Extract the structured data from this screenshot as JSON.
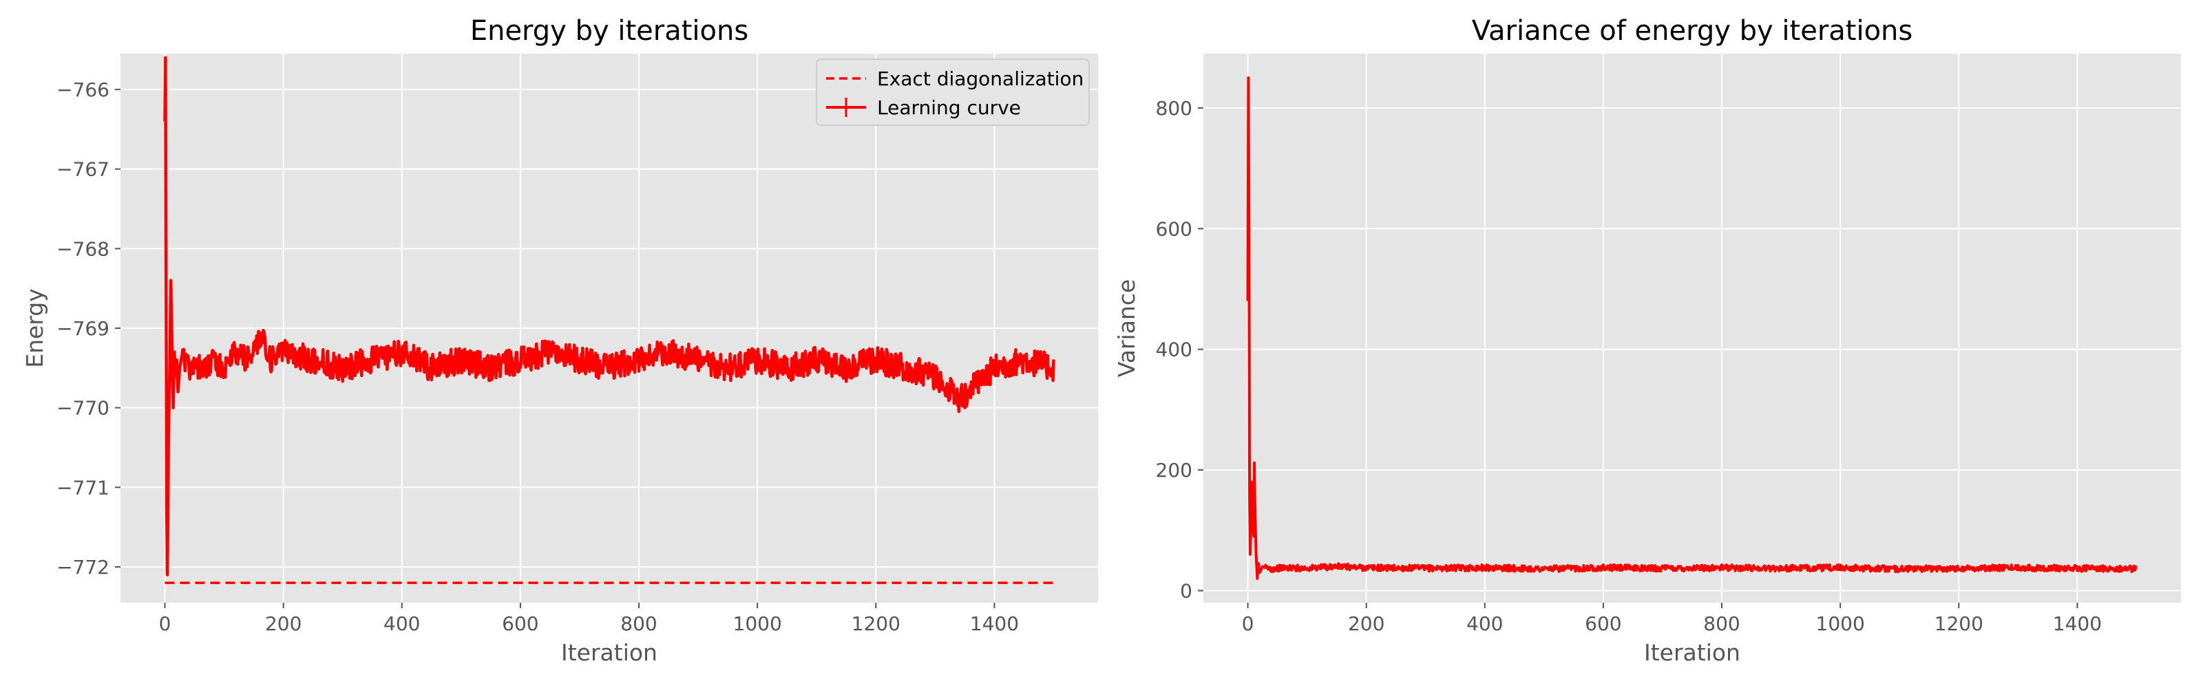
{
  "colors": {
    "panel_bg": "#e5e5e5",
    "grid": "#ffffff",
    "series": "#ff0000",
    "text": "#555555",
    "legend_border": "#cccccc"
  },
  "chart_data": [
    {
      "type": "line",
      "title": "Energy by iterations",
      "xlabel": "Iteration",
      "ylabel": "Energy",
      "xlim": [
        -75,
        1575
      ],
      "ylim": [
        -772.45,
        -765.55
      ],
      "xticks": [
        0,
        200,
        400,
        600,
        800,
        1000,
        1200,
        1400
      ],
      "yticks": [
        -766,
        -767,
        -768,
        -769,
        -770,
        -771,
        -772
      ],
      "grid": true,
      "legend": {
        "position": "upper-right",
        "entries": [
          {
            "label": "Exact diagonalization",
            "style": "dashed"
          },
          {
            "label": "Learning curve",
            "style": "solid-errorbar"
          }
        ]
      },
      "series": [
        {
          "name": "Exact diagonalization",
          "style": "dashed",
          "x": [
            0,
            1500
          ],
          "y": [
            -772.2,
            -772.2
          ]
        },
        {
          "name": "Learning curve",
          "style": "solid",
          "x": [
            0,
            1,
            2,
            3,
            4,
            5,
            6,
            8,
            10,
            12,
            14,
            16,
            18,
            20,
            22,
            25,
            30,
            40,
            50,
            60,
            80,
            100,
            120,
            140,
            160,
            180,
            200,
            250,
            300,
            350,
            400,
            450,
            500,
            550,
            600,
            650,
            700,
            750,
            800,
            850,
            900,
            950,
            1000,
            1050,
            1100,
            1150,
            1200,
            1250,
            1300,
            1340,
            1400,
            1450,
            1500
          ],
          "y": [
            -766.4,
            -765.6,
            -768.5,
            -771.2,
            -772.1,
            -771.5,
            -770.4,
            -769.6,
            -768.4,
            -769.2,
            -770.0,
            -769.3,
            -769.6,
            -769.4,
            -769.8,
            -769.5,
            -769.3,
            -769.5,
            -769.4,
            -769.5,
            -769.4,
            -769.5,
            -769.3,
            -769.4,
            -769.1,
            -769.4,
            -769.3,
            -769.4,
            -769.5,
            -769.4,
            -769.3,
            -769.5,
            -769.4,
            -769.5,
            -769.4,
            -769.3,
            -769.4,
            -769.5,
            -769.4,
            -769.3,
            -769.4,
            -769.5,
            -769.4,
            -769.5,
            -769.4,
            -769.5,
            -769.4,
            -769.5,
            -769.6,
            -769.9,
            -769.5,
            -769.4,
            -769.5
          ]
        }
      ]
    },
    {
      "type": "line",
      "title": "Variance of energy by iterations",
      "xlabel": "Iteration",
      "ylabel": "Variance",
      "xlim": [
        -75,
        1575
      ],
      "ylim": [
        -20,
        890
      ],
      "xticks": [
        0,
        200,
        400,
        600,
        800,
        1000,
        1200,
        1400
      ],
      "yticks": [
        0,
        200,
        400,
        600,
        800
      ],
      "grid": true,
      "series": [
        {
          "name": "",
          "style": "solid",
          "x": [
            0,
            1,
            2,
            3,
            4,
            5,
            6,
            8,
            10,
            11,
            12,
            14,
            16,
            18,
            20,
            25,
            30,
            40,
            60,
            100,
            150,
            200,
            300,
            400,
            500,
            600,
            700,
            800,
            900,
            1000,
            1100,
            1200,
            1300,
            1400,
            1500
          ],
          "y": [
            480,
            850,
            600,
            150,
            60,
            100,
            180,
            120,
            90,
            212,
            140,
            60,
            20,
            45,
            30,
            40,
            38,
            36,
            38,
            37,
            40,
            38,
            37,
            38,
            36,
            38,
            37,
            38,
            37,
            38,
            36,
            37,
            38,
            37,
            36
          ]
        }
      ]
    }
  ]
}
